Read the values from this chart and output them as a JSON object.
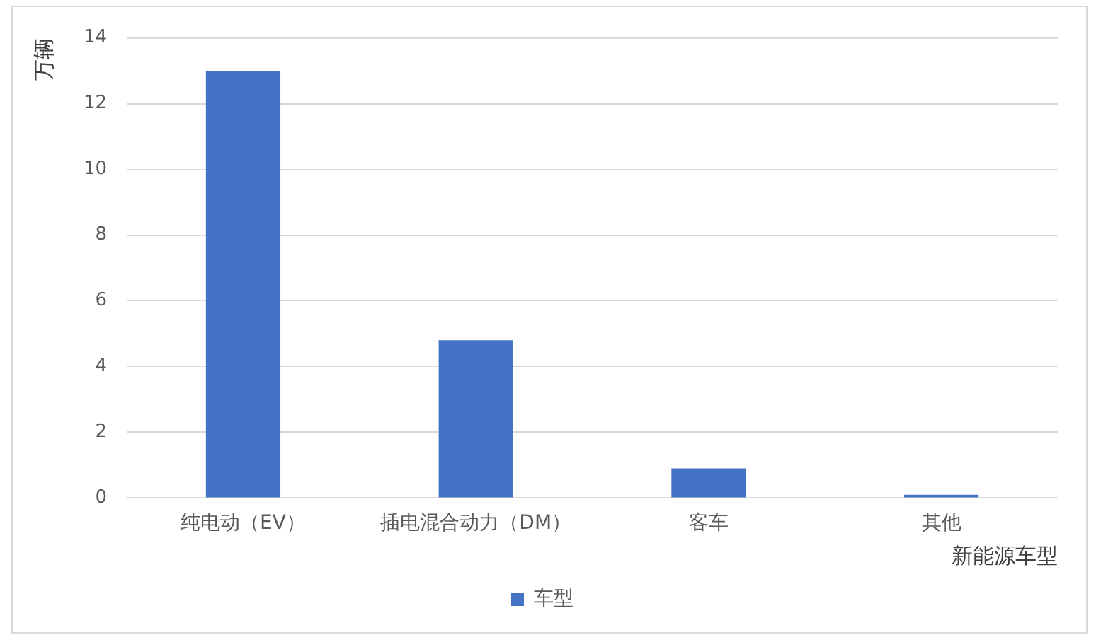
{
  "chart_data": {
    "type": "bar",
    "xlabel": "新能源车型",
    "ylabel": "万辆",
    "categories": [
      "纯电动（EV）",
      "插电混合动力（DM）",
      "客车",
      "其他"
    ],
    "series": [
      {
        "name": "车型",
        "color": "#4472c4",
        "values": [
          13,
          4.8,
          0.9,
          0.1
        ]
      }
    ],
    "ylim": [
      0,
      14
    ],
    "yticks": [
      0,
      2,
      4,
      6,
      8,
      10,
      12,
      14
    ],
    "grid": "y",
    "legend": "bottom"
  }
}
